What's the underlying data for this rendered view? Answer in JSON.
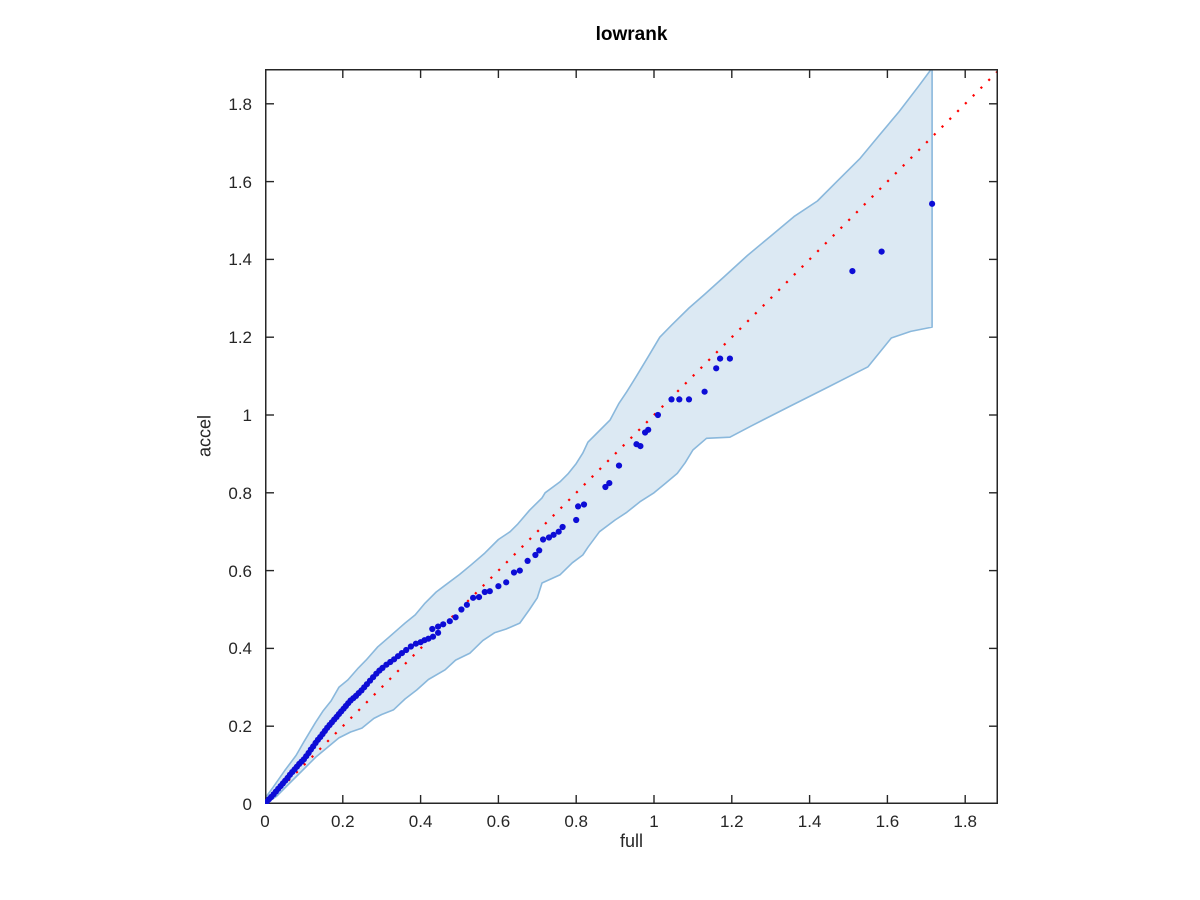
{
  "figure": {
    "title": "lowrank",
    "xlabel": "full",
    "ylabel": "accel"
  },
  "chart_data": {
    "type": "scatter",
    "title": "lowrank",
    "xlabel": "full",
    "ylabel": "accel",
    "legend": "none",
    "grid": false,
    "box": true,
    "description": "Quantile-quantile style comparison of 'accel' vs 'full' with shaded confidence band and dotted identity reference line",
    "axes": {
      "xlim": [
        0,
        1.884
      ],
      "ylim": [
        0,
        1.889
      ],
      "xticks": [
        0,
        0.2,
        0.4,
        0.6,
        0.8,
        1.0,
        1.2,
        1.4,
        1.6,
        1.8
      ],
      "xtick_labels": [
        "0",
        "0.2",
        "0.4",
        "0.6",
        "0.8",
        "1",
        "1.2",
        "1.4",
        "1.6",
        "1.8"
      ],
      "yticks": [
        0,
        0.2,
        0.4,
        0.6,
        0.8,
        1.0,
        1.2,
        1.4,
        1.6,
        1.8
      ],
      "ytick_labels": [
        "0",
        "0.2",
        "0.4",
        "0.6",
        "0.8",
        "1",
        "1.2",
        "1.4",
        "1.6",
        "1.8"
      ]
    },
    "colors": {
      "band_fill": "#dce9f3",
      "band_edge": "#8ab8dc",
      "identity_line": "#ff0000",
      "marker": "#0d0dd6",
      "axis": "#262626",
      "title_color": "#000000"
    },
    "identity_line": {
      "start": [
        0,
        0
      ],
      "end": [
        1.9,
        1.9
      ],
      "style": "dotted"
    },
    "band": {
      "upper": [
        [
          0,
          0.015
        ],
        [
          0.02,
          0.042
        ],
        [
          0.05,
          0.085
        ],
        [
          0.08,
          0.125
        ],
        [
          0.1,
          0.16
        ],
        [
          0.13,
          0.21
        ],
        [
          0.15,
          0.24
        ],
        [
          0.17,
          0.265
        ],
        [
          0.19,
          0.3
        ],
        [
          0.213,
          0.319
        ],
        [
          0.24,
          0.35
        ],
        [
          0.26,
          0.37
        ],
        [
          0.29,
          0.404
        ],
        [
          0.32,
          0.43
        ],
        [
          0.345,
          0.452
        ],
        [
          0.36,
          0.465
        ],
        [
          0.386,
          0.486
        ],
        [
          0.41,
          0.515
        ],
        [
          0.44,
          0.545
        ],
        [
          0.46,
          0.56
        ],
        [
          0.5,
          0.59
        ],
        [
          0.53,
          0.615
        ],
        [
          0.565,
          0.645
        ],
        [
          0.6,
          0.68
        ],
        [
          0.63,
          0.7
        ],
        [
          0.65,
          0.72
        ],
        [
          0.68,
          0.755
        ],
        [
          0.712,
          0.787
        ],
        [
          0.72,
          0.8
        ],
        [
          0.758,
          0.828
        ],
        [
          0.78,
          0.85
        ],
        [
          0.8,
          0.875
        ],
        [
          0.817,
          0.902
        ],
        [
          0.83,
          0.93
        ],
        [
          0.85,
          0.95
        ],
        [
          0.887,
          0.987
        ],
        [
          0.91,
          1.03
        ],
        [
          0.93,
          1.06
        ],
        [
          0.955,
          1.1
        ],
        [
          0.985,
          1.15
        ],
        [
          1.015,
          1.2
        ],
        [
          1.046,
          1.232
        ],
        [
          1.09,
          1.275
        ],
        [
          1.13,
          1.31
        ],
        [
          1.18,
          1.355
        ],
        [
          1.24,
          1.41
        ],
        [
          1.3,
          1.46
        ],
        [
          1.36,
          1.51
        ],
        [
          1.42,
          1.55
        ],
        [
          1.47,
          1.6
        ],
        [
          1.53,
          1.66
        ],
        [
          1.58,
          1.72
        ],
        [
          1.63,
          1.78
        ],
        [
          1.68,
          1.845
        ],
        [
          1.715,
          1.892
        ]
      ],
      "lower": [
        [
          0,
          0
        ],
        [
          0.03,
          0.02
        ],
        [
          0.06,
          0.05
        ],
        [
          0.1,
          0.09
        ],
        [
          0.13,
          0.12
        ],
        [
          0.16,
          0.145
        ],
        [
          0.19,
          0.17
        ],
        [
          0.22,
          0.185
        ],
        [
          0.249,
          0.195
        ],
        [
          0.28,
          0.22
        ],
        [
          0.3,
          0.23
        ],
        [
          0.33,
          0.242
        ],
        [
          0.36,
          0.27
        ],
        [
          0.39,
          0.293
        ],
        [
          0.42,
          0.32
        ],
        [
          0.463,
          0.345
        ],
        [
          0.49,
          0.37
        ],
        [
          0.527,
          0.388
        ],
        [
          0.56,
          0.42
        ],
        [
          0.59,
          0.44
        ],
        [
          0.62,
          0.45
        ],
        [
          0.655,
          0.465
        ],
        [
          0.68,
          0.5
        ],
        [
          0.7,
          0.53
        ],
        [
          0.712,
          0.568
        ],
        [
          0.758,
          0.589
        ],
        [
          0.79,
          0.62
        ],
        [
          0.817,
          0.64
        ],
        [
          0.83,
          0.66
        ],
        [
          0.86,
          0.7
        ],
        [
          0.9,
          0.73
        ],
        [
          0.93,
          0.75
        ],
        [
          0.964,
          0.777
        ],
        [
          1.0,
          0.8
        ],
        [
          1.03,
          0.825
        ],
        [
          1.06,
          0.85
        ],
        [
          1.08,
          0.877
        ],
        [
          1.1,
          0.91
        ],
        [
          1.135,
          0.94
        ],
        [
          1.195,
          0.943
        ],
        [
          1.25,
          0.972
        ],
        [
          1.35,
          1.023
        ],
        [
          1.45,
          1.073
        ],
        [
          1.55,
          1.124
        ],
        [
          1.61,
          1.198
        ],
        [
          1.66,
          1.215
        ],
        [
          1.715,
          1.226
        ]
      ]
    },
    "points": [
      [
        0.004,
        0.005
      ],
      [
        0.01,
        0.012
      ],
      [
        0.016,
        0.018
      ],
      [
        0.022,
        0.025
      ],
      [
        0.028,
        0.032
      ],
      [
        0.034,
        0.039
      ],
      [
        0.04,
        0.046
      ],
      [
        0.046,
        0.053
      ],
      [
        0.052,
        0.06
      ],
      [
        0.058,
        0.067
      ],
      [
        0.064,
        0.075
      ],
      [
        0.07,
        0.082
      ],
      [
        0.076,
        0.089
      ],
      [
        0.082,
        0.096
      ],
      [
        0.088,
        0.103
      ],
      [
        0.094,
        0.109
      ],
      [
        0.1,
        0.115
      ],
      [
        0.106,
        0.123
      ],
      [
        0.112,
        0.131
      ],
      [
        0.118,
        0.14
      ],
      [
        0.124,
        0.148
      ],
      [
        0.13,
        0.157
      ],
      [
        0.136,
        0.165
      ],
      [
        0.142,
        0.172
      ],
      [
        0.148,
        0.18
      ],
      [
        0.154,
        0.188
      ],
      [
        0.16,
        0.196
      ],
      [
        0.166,
        0.203
      ],
      [
        0.172,
        0.21
      ],
      [
        0.178,
        0.217
      ],
      [
        0.184,
        0.224
      ],
      [
        0.19,
        0.231
      ],
      [
        0.196,
        0.238
      ],
      [
        0.202,
        0.245
      ],
      [
        0.208,
        0.252
      ],
      [
        0.214,
        0.259
      ],
      [
        0.22,
        0.266
      ],
      [
        0.227,
        0.272
      ],
      [
        0.234,
        0.278
      ],
      [
        0.241,
        0.285
      ],
      [
        0.248,
        0.292
      ],
      [
        0.255,
        0.3
      ],
      [
        0.262,
        0.308
      ],
      [
        0.27,
        0.317
      ],
      [
        0.278,
        0.326
      ],
      [
        0.286,
        0.335
      ],
      [
        0.294,
        0.343
      ],
      [
        0.302,
        0.35
      ],
      [
        0.312,
        0.358
      ],
      [
        0.322,
        0.365
      ],
      [
        0.332,
        0.372
      ],
      [
        0.342,
        0.38
      ],
      [
        0.352,
        0.388
      ],
      [
        0.363,
        0.396
      ],
      [
        0.375,
        0.405
      ],
      [
        0.388,
        0.412
      ],
      [
        0.4,
        0.416
      ],
      [
        0.41,
        0.421
      ],
      [
        0.42,
        0.425
      ],
      [
        0.432,
        0.43
      ],
      [
        0.445,
        0.44
      ],
      [
        0.43,
        0.45
      ],
      [
        0.445,
        0.456
      ],
      [
        0.458,
        0.462
      ],
      [
        0.475,
        0.47
      ],
      [
        0.49,
        0.48
      ],
      [
        0.505,
        0.5
      ],
      [
        0.519,
        0.512
      ],
      [
        0.535,
        0.53
      ],
      [
        0.55,
        0.532
      ],
      [
        0.565,
        0.545
      ],
      [
        0.578,
        0.547
      ],
      [
        0.6,
        0.56
      ],
      [
        0.62,
        0.57
      ],
      [
        0.64,
        0.595
      ],
      [
        0.655,
        0.6
      ],
      [
        0.675,
        0.625
      ],
      [
        0.695,
        0.64
      ],
      [
        0.705,
        0.652
      ],
      [
        0.715,
        0.68
      ],
      [
        0.73,
        0.685
      ],
      [
        0.742,
        0.692
      ],
      [
        0.755,
        0.7
      ],
      [
        0.765,
        0.712
      ],
      [
        0.8,
        0.73
      ],
      [
        0.805,
        0.765
      ],
      [
        0.82,
        0.77
      ],
      [
        0.875,
        0.815
      ],
      [
        0.885,
        0.825
      ],
      [
        0.91,
        0.87
      ],
      [
        0.955,
        0.925
      ],
      [
        0.965,
        0.92
      ],
      [
        0.977,
        0.955
      ],
      [
        0.985,
        0.962
      ],
      [
        1.01,
        1.0
      ],
      [
        1.045,
        1.04
      ],
      [
        1.065,
        1.04
      ],
      [
        1.09,
        1.04
      ],
      [
        1.13,
        1.06
      ],
      [
        1.16,
        1.12
      ],
      [
        1.17,
        1.145
      ],
      [
        1.195,
        1.145
      ],
      [
        1.51,
        1.37
      ],
      [
        1.585,
        1.42
      ],
      [
        1.715,
        1.543
      ]
    ]
  }
}
